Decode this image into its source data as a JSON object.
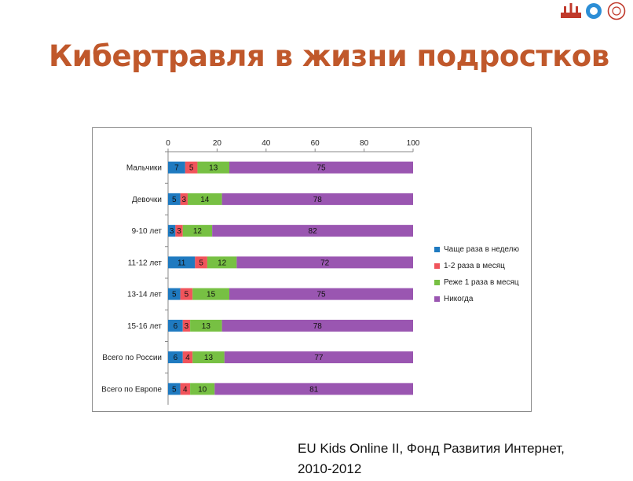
{
  "slide": {
    "title": "Кибертравля в жизни подростков",
    "source_line1": "EU Kids Online II, Фонд Развития Интернет,",
    "source_line2": "2010-2012"
  },
  "colors": {
    "title": "#c0582b",
    "series": [
      "#1f7ac0",
      "#f0545b",
      "#77c043",
      "#9a56b1"
    ]
  },
  "chart_data": {
    "type": "bar",
    "orientation": "horizontal",
    "stacked": true,
    "xlim": [
      0,
      100
    ],
    "x_ticks": [
      0,
      20,
      40,
      60,
      80,
      100
    ],
    "x_axis_position": "top",
    "grid": false,
    "legend_position": "right",
    "categories": [
      "Мальчики",
      "Девочки",
      "9-10 лет",
      "11-12 лет",
      "13-14 лет",
      "15-16 лет",
      "Всего по России",
      "Всего по Европе"
    ],
    "series": [
      {
        "name": "Чаще раза в неделю",
        "values": [
          7,
          5,
          3,
          11,
          5,
          6,
          6,
          5
        ]
      },
      {
        "name": "1-2 раза в месяц",
        "values": [
          5,
          3,
          3,
          5,
          5,
          3,
          4,
          4
        ]
      },
      {
        "name": "Реже 1 раза в месяц",
        "values": [
          13,
          14,
          12,
          12,
          15,
          13,
          13,
          10
        ]
      },
      {
        "name": "Никогда",
        "values": [
          75,
          78,
          82,
          72,
          75,
          78,
          77,
          81
        ]
      }
    ]
  }
}
